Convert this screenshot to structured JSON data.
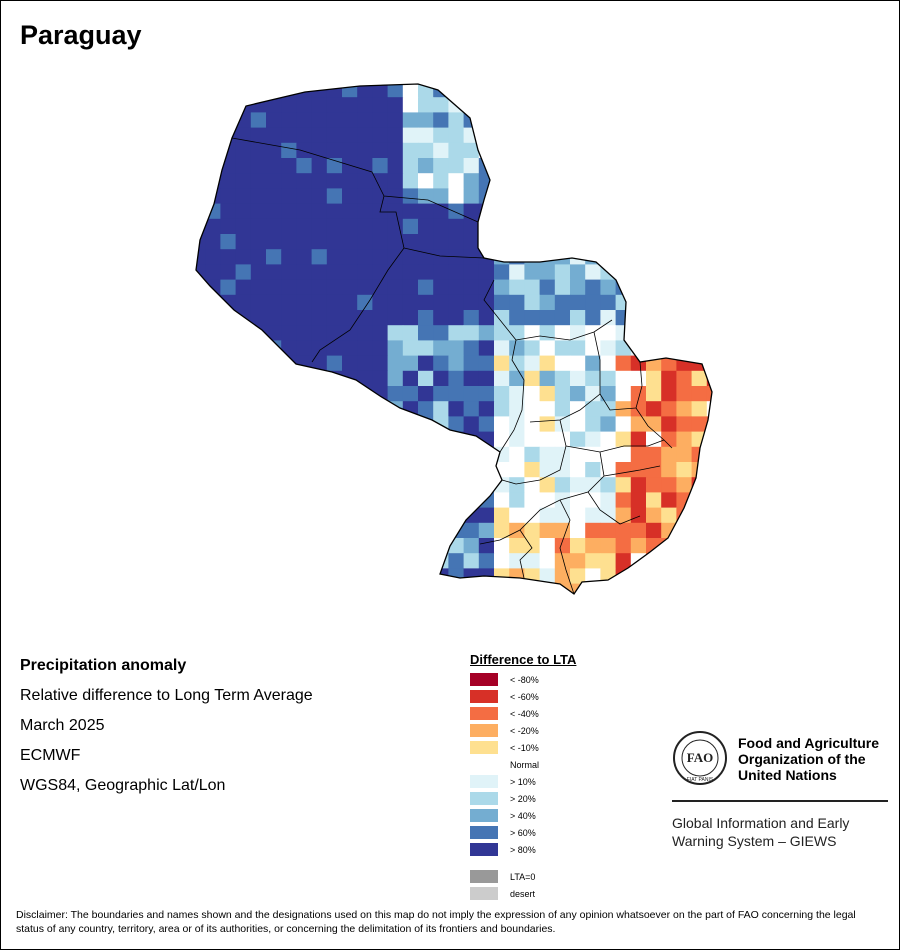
{
  "title": "Paraguay",
  "info": {
    "heading": "Precipitation anomaly",
    "line1": "Relative difference to Long Term Average",
    "line2": "March 2025",
    "line3": "ECMWF",
    "line4": "WGS84, Geographic Lat/Lon"
  },
  "legend": {
    "title": "Difference to LTA",
    "items": [
      {
        "label": "< -80%",
        "color": "#a50026"
      },
      {
        "label": "< -60%",
        "color": "#d73027"
      },
      {
        "label": "< -40%",
        "color": "#f46d43"
      },
      {
        "label": "< -20%",
        "color": "#fdae61"
      },
      {
        "label": "< -10%",
        "color": "#fee090"
      },
      {
        "label": "Normal",
        "color": "#ffffff"
      },
      {
        "label": "> 10%",
        "color": "#e0f3f8"
      },
      {
        "label": "> 20%",
        "color": "#abd9e9"
      },
      {
        "label": "> 40%",
        "color": "#74add1"
      },
      {
        "label": "> 60%",
        "color": "#4575b4"
      },
      {
        "label": "> 80%",
        "color": "#313695"
      }
    ],
    "extra": [
      {
        "label": "LTA=0",
        "color": "#999999"
      },
      {
        "label": "desert",
        "color": "#cccccc"
      }
    ]
  },
  "fao": {
    "logo_text": "FAO",
    "logo_motto": "FIAT PANIS",
    "name_line1": "Food and Agriculture",
    "name_line2": "Organization of the",
    "name_line3": "United Nations",
    "giews_line1": "Global Information and Early",
    "giews_line2": "Warning System – GIEWS"
  },
  "disclaimer": "Disclaimer: The boundaries and names shown and the designations used on this map do not imply the expression of any opinion whatsoever on the part of FAO concerning the legal status of any country, territory, area or of its authorities, or concerning the delimitation of its frontiers and boundaries."
}
